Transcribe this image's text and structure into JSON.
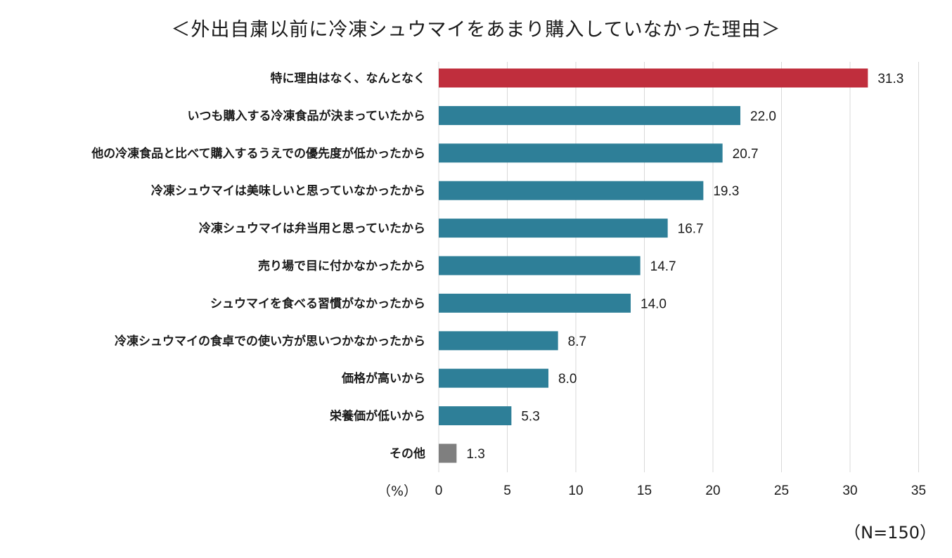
{
  "chart_data": {
    "type": "bar",
    "orientation": "horizontal",
    "title": "＜外出自粛以前に冷凍シュウマイをあまり購入していなかった理由＞",
    "x_unit_label": "（%）",
    "sample_note": "（N=150）",
    "xlim": [
      0,
      35
    ],
    "x_ticks": [
      "0",
      "5",
      "10",
      "15",
      "20",
      "25",
      "30",
      "35"
    ],
    "grid": true,
    "categories": [
      "特に理由はなく、なんとなく",
      "いつも購入する冷凍食品が決まっていたから",
      "他の冷凍食品と比べて購入するうえでの優先度が低かったから",
      "冷凍シュウマイは美味しいと思っていなかったから",
      "冷凍シュウマイは弁当用と思っていたから",
      "売り場で目に付かなかったから",
      "シュウマイを食べる習慣がなかったから",
      "冷凍シュウマイの食卓での使い方が思いつかなかったから",
      "価格が高いから",
      "栄養価が低いから",
      "その他"
    ],
    "values": [
      31.3,
      22.0,
      20.7,
      19.3,
      16.7,
      14.7,
      14.0,
      8.7,
      8.0,
      5.3,
      1.3
    ],
    "value_labels": [
      "31.3",
      "22.0",
      "20.7",
      "19.3",
      "16.7",
      "14.7",
      "14.0",
      "8.7",
      "8.0",
      "5.3",
      "1.3"
    ],
    "bar_colors": [
      "#c02e3d",
      "#2e7f98",
      "#2e7f98",
      "#2e7f98",
      "#2e7f98",
      "#2e7f98",
      "#2e7f98",
      "#2e7f98",
      "#2e7f98",
      "#2e7f98",
      "#7f7f7f"
    ],
    "gridline_color": "#d9d9d9"
  }
}
